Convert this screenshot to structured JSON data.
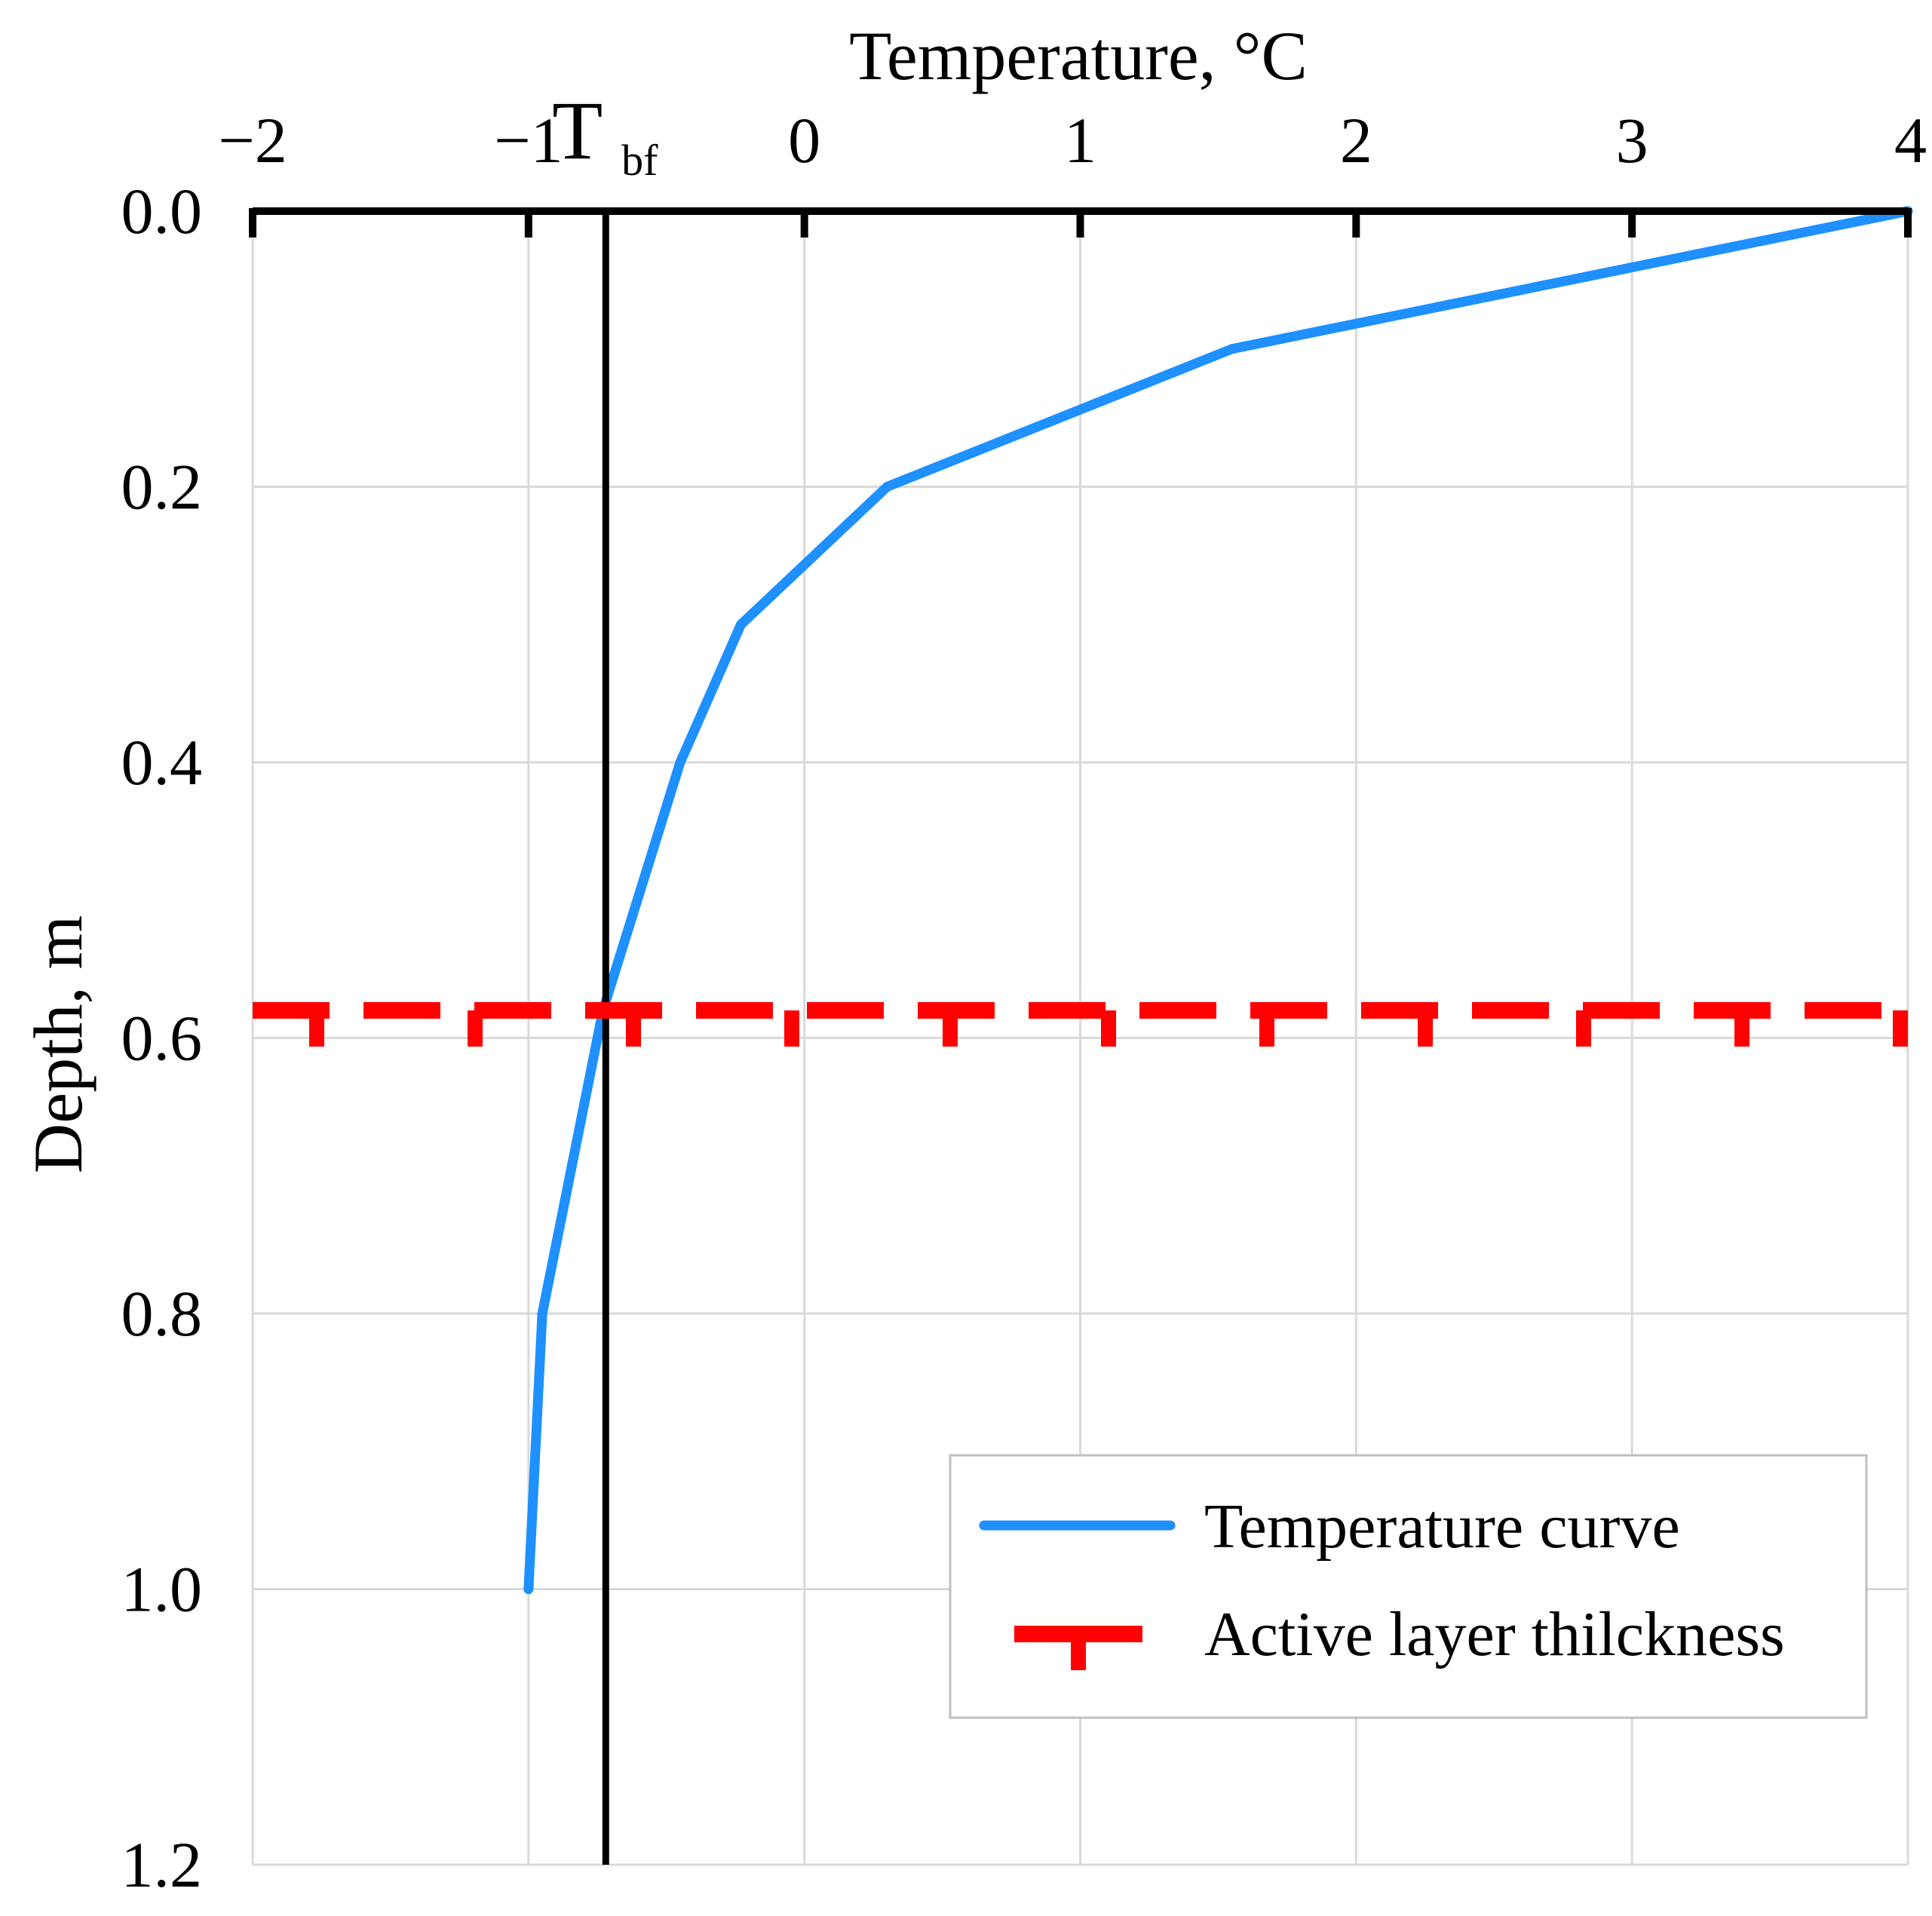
{
  "chart_data": {
    "type": "line",
    "title": "",
    "xlabel": "Temperature, °C",
    "ylabel": "Depth, m",
    "xlim": [
      -2,
      4
    ],
    "ylim": [
      0,
      1.2
    ],
    "y_inverted": true,
    "x_axis_position": "top",
    "x_ticks": [
      -2,
      -1,
      0,
      1,
      2,
      3,
      4
    ],
    "x_tick_labels": [
      "−2",
      "−1",
      "0",
      "1",
      "2",
      "3",
      "4"
    ],
    "y_ticks": [
      0,
      0.2,
      0.4,
      0.6,
      0.8,
      1.0,
      1.2
    ],
    "y_tick_labels": [
      "0.0",
      "0.2",
      "0.4",
      "0.6",
      "0.8",
      "1.0",
      "1.2"
    ],
    "grid": true,
    "legend_position": "bottom-right",
    "series": [
      {
        "name": "Temperature curve",
        "color": "#1E90FF",
        "x": [
          4.0,
          1.55,
          0.3,
          -0.23,
          -0.45,
          -0.73,
          -0.95,
          -1.0
        ],
        "y": [
          0.0,
          0.1,
          0.2,
          0.3,
          0.4,
          0.58,
          0.8,
          1.0
        ]
      },
      {
        "name": "Active layer thilckness",
        "color": "#FF0000",
        "y": 0.58
      }
    ],
    "reference_lines": [
      {
        "label_main": "T",
        "label_sub": "bf",
        "x": -0.72,
        "color": "#000000"
      }
    ]
  }
}
